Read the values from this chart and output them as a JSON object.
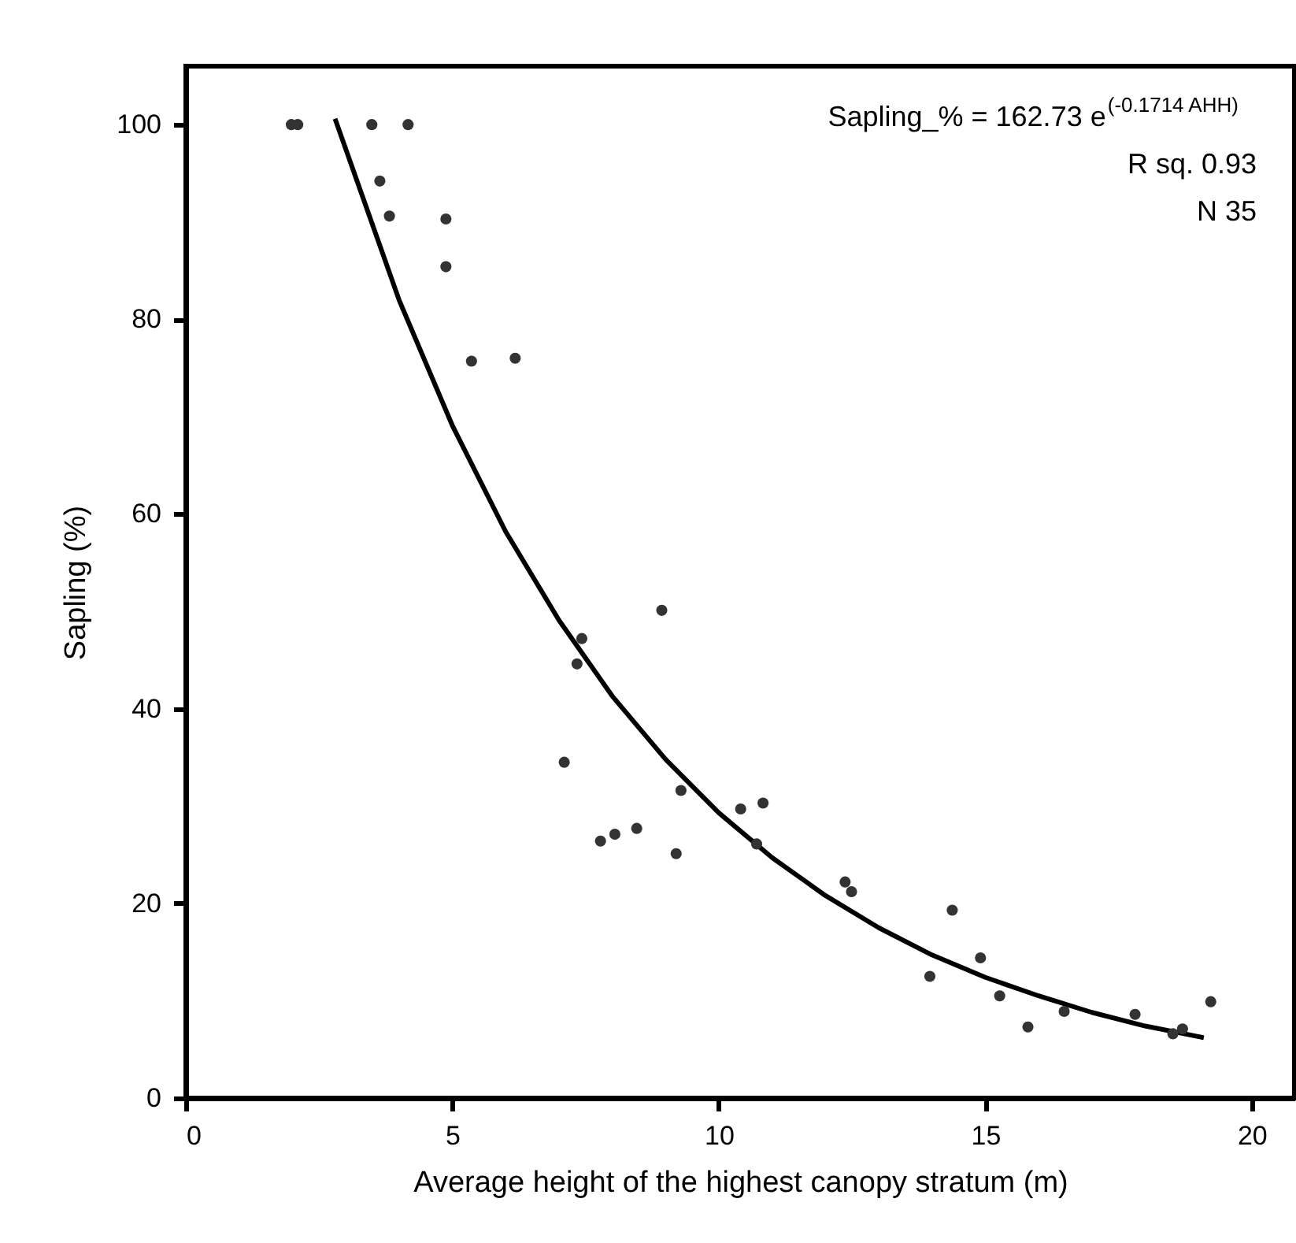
{
  "chart_data": {
    "type": "scatter",
    "xlabel": "Average height of the highest canopy stratum (m)",
    "ylabel": "Sapling (%)",
    "xlim": [
      0,
      20.8
    ],
    "xticks": [
      0,
      5,
      10,
      15,
      20
    ],
    "ylim": [
      0,
      106
    ],
    "yticks": [
      0,
      20,
      40,
      60,
      80,
      100
    ],
    "grid": false,
    "annotations": [
      "Sapling_% = 162.73 e$^{(-0.1714 AHH)}$",
      "R sq.  0.93",
      "N     35"
    ],
    "series": [
      {
        "marker": "circle",
        "color": "#333333",
        "x": [
          1.98,
          2.1,
          3.49,
          4.17,
          3.64,
          3.82,
          4.88,
          4.88,
          5.36,
          6.18,
          7.43,
          7.34,
          8.93,
          7.1,
          9.29,
          7.78,
          8.05,
          8.46,
          9.2,
          10.41,
          10.83,
          10.71,
          12.37,
          12.49,
          14.38,
          13.96,
          14.91,
          15.27,
          15.8,
          16.48,
          17.81,
          18.52,
          18.7,
          19.23
        ],
        "values": [
          100,
          100,
          100,
          100,
          94.2,
          90.6,
          90.3,
          85.4,
          75.7,
          76.0,
          47.2,
          44.6,
          50.1,
          34.5,
          31.6,
          26.4,
          27.1,
          27.7,
          25.1,
          29.7,
          30.3,
          26.1,
          22.2,
          21.2,
          19.3,
          12.5,
          14.4,
          10.5,
          7.3,
          8.9,
          8.6,
          6.6,
          7.1,
          9.9
        ]
      },
      {
        "type": "line",
        "marker": "none",
        "color": "#000000",
        "line_style": "solid",
        "x": [
          2.8,
          4,
          5,
          6,
          7,
          8,
          9,
          10,
          11,
          12,
          13,
          14,
          15,
          16,
          17,
          18,
          19.1
        ],
        "values": [
          100.6,
          82.0,
          69.1,
          58.2,
          49.1,
          41.3,
          34.8,
          29.3,
          24.7,
          20.8,
          17.5,
          14.7,
          12.4,
          10.5,
          8.8,
          7.4,
          6.2
        ]
      }
    ]
  }
}
